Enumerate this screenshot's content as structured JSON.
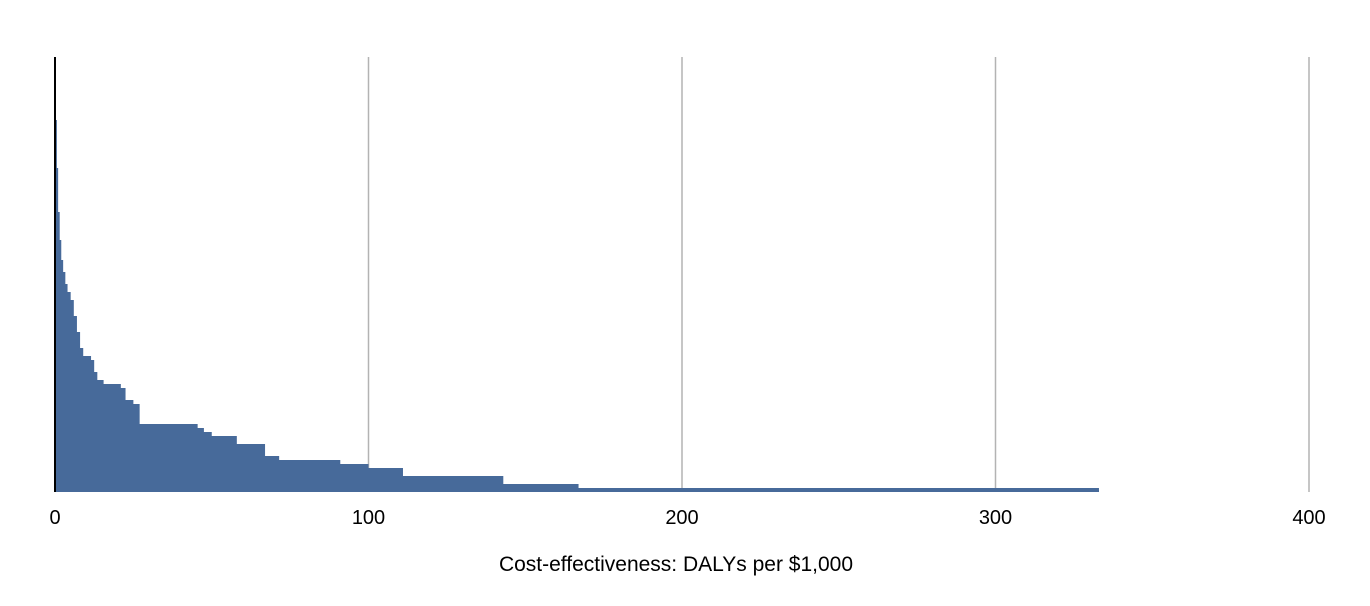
{
  "chart_data": {
    "type": "area",
    "title": "",
    "xlabel": "Cost-effectiveness: DALYs per $1,000",
    "ylabel": "",
    "xlim": [
      0,
      400
    ],
    "xticks": [
      0,
      100,
      200,
      300,
      400
    ],
    "grid": true,
    "series_color": "#476a9a",
    "gridline_color": "#b3b3b3",
    "axis_color": "#000000",
    "y_axis_labels_shown": false,
    "series": [
      {
        "values": [
          [
            0.0,
            100
          ],
          [
            0.3,
            93
          ],
          [
            0.6,
            81
          ],
          [
            1.0,
            70
          ],
          [
            1.5,
            63
          ],
          [
            2.0,
            58
          ],
          [
            2.6,
            55
          ],
          [
            3.3,
            52
          ],
          [
            4.0,
            50
          ],
          [
            5.0,
            48
          ],
          [
            6.0,
            44
          ],
          [
            7.0,
            40
          ],
          [
            8.0,
            36
          ],
          [
            9.0,
            34
          ],
          [
            11.5,
            33
          ],
          [
            12.5,
            30
          ],
          [
            13.5,
            28
          ],
          [
            15.5,
            27
          ],
          [
            21.0,
            26
          ],
          [
            22.5,
            23
          ],
          [
            25.0,
            22
          ],
          [
            27.0,
            17
          ],
          [
            45.5,
            16
          ],
          [
            47.5,
            15
          ],
          [
            50.0,
            14
          ],
          [
            58.0,
            12
          ],
          [
            67.0,
            9
          ],
          [
            71.5,
            8
          ],
          [
            91.0,
            7
          ],
          [
            100.0,
            6
          ],
          [
            111.0,
            4
          ],
          [
            143.0,
            2
          ],
          [
            167.0,
            1
          ],
          [
            250.0,
            0.5
          ],
          [
            333.0,
            0
          ]
        ]
      }
    ]
  }
}
